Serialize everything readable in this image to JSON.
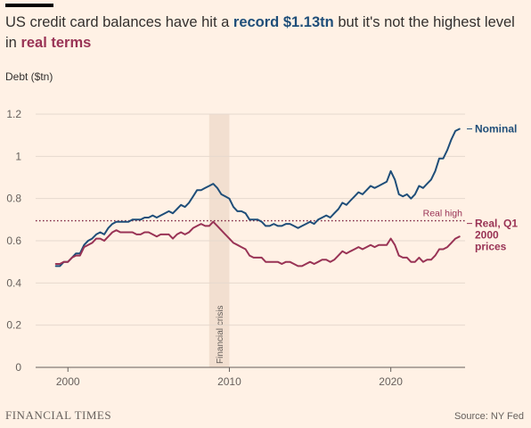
{
  "header": {
    "title_part1": "US credit card balances have hit a",
    "title_record": "record $1.13tn",
    "title_part2": "but it's not the highest level in",
    "title_real": "real terms"
  },
  "footer": {
    "brand": "FINANCIAL TIMES",
    "source": "Source: NY Fed"
  },
  "colors": {
    "nominal": "#1f4e79",
    "real": "#993355",
    "real_high": "#7a1f3d",
    "crisis_band": "#f2dfd0",
    "grid": "#e6d9ce",
    "axis_text": "#66605c"
  },
  "chart_data": {
    "type": "line",
    "ylabel": "Debt ($tn)",
    "ylim": [
      0,
      1.2
    ],
    "xlim": [
      1998,
      2024.6
    ],
    "yticks": [
      0,
      0.2,
      0.4,
      0.6,
      0.8,
      1,
      1.2
    ],
    "ytick_labels": [
      "0",
      "0.2",
      "0.4",
      "0.6",
      "0.8",
      "1",
      "1.2"
    ],
    "xticks": [
      2000,
      2010,
      2020
    ],
    "xtick_labels": [
      "2000",
      "2010",
      "2020"
    ],
    "grid": true,
    "annotations": {
      "crisis_label": "Financial crisis",
      "crisis_range": [
        2008.75,
        2010.0
      ],
      "real_high_label": "Real high",
      "real_high_value": 0.695
    },
    "series": [
      {
        "name": "Nominal",
        "x": [
          1999.25,
          1999.5,
          1999.75,
          2000.0,
          2000.25,
          2000.5,
          2000.75,
          2001.0,
          2001.25,
          2001.5,
          2001.75,
          2002.0,
          2002.25,
          2002.5,
          2002.75,
          2003.0,
          2003.25,
          2003.5,
          2003.75,
          2004.0,
          2004.25,
          2004.5,
          2004.75,
          2005.0,
          2005.25,
          2005.5,
          2005.75,
          2006.0,
          2006.25,
          2006.5,
          2006.75,
          2007.0,
          2007.25,
          2007.5,
          2007.75,
          2008.0,
          2008.25,
          2008.5,
          2008.75,
          2009.0,
          2009.25,
          2009.5,
          2009.75,
          2010.0,
          2010.25,
          2010.5,
          2010.75,
          2011.0,
          2011.25,
          2011.5,
          2011.75,
          2012.0,
          2012.25,
          2012.5,
          2012.75,
          2013.0,
          2013.25,
          2013.5,
          2013.75,
          2014.0,
          2014.25,
          2014.5,
          2014.75,
          2015.0,
          2015.25,
          2015.5,
          2015.75,
          2016.0,
          2016.25,
          2016.5,
          2016.75,
          2017.0,
          2017.25,
          2017.5,
          2017.75,
          2018.0,
          2018.25,
          2018.5,
          2018.75,
          2019.0,
          2019.25,
          2019.5,
          2019.75,
          2020.0,
          2020.25,
          2020.5,
          2020.75,
          2021.0,
          2021.25,
          2021.5,
          2021.75,
          2022.0,
          2022.25,
          2022.5,
          2022.75,
          2023.0,
          2023.25,
          2023.5,
          2023.75,
          2024.0,
          2024.25
        ],
        "values": [
          0.48,
          0.48,
          0.5,
          0.5,
          0.52,
          0.54,
          0.54,
          0.58,
          0.6,
          0.61,
          0.63,
          0.64,
          0.63,
          0.66,
          0.68,
          0.69,
          0.69,
          0.69,
          0.69,
          0.7,
          0.7,
          0.7,
          0.71,
          0.71,
          0.72,
          0.71,
          0.72,
          0.73,
          0.74,
          0.73,
          0.75,
          0.77,
          0.76,
          0.78,
          0.81,
          0.84,
          0.84,
          0.85,
          0.86,
          0.87,
          0.85,
          0.82,
          0.81,
          0.8,
          0.76,
          0.74,
          0.74,
          0.73,
          0.7,
          0.7,
          0.7,
          0.69,
          0.67,
          0.67,
          0.68,
          0.67,
          0.67,
          0.68,
          0.68,
          0.67,
          0.66,
          0.67,
          0.68,
          0.69,
          0.68,
          0.7,
          0.71,
          0.72,
          0.71,
          0.73,
          0.75,
          0.78,
          0.77,
          0.79,
          0.81,
          0.83,
          0.82,
          0.84,
          0.86,
          0.85,
          0.86,
          0.87,
          0.88,
          0.93,
          0.89,
          0.82,
          0.81,
          0.82,
          0.8,
          0.82,
          0.86,
          0.85,
          0.87,
          0.89,
          0.93,
          0.99,
          0.99,
          1.03,
          1.08,
          1.12,
          1.13
        ]
      },
      {
        "name": "Real, Q1 2000 prices",
        "x": [
          1999.25,
          1999.5,
          1999.75,
          2000.0,
          2000.25,
          2000.5,
          2000.75,
          2001.0,
          2001.25,
          2001.5,
          2001.75,
          2002.0,
          2002.25,
          2002.5,
          2002.75,
          2003.0,
          2003.25,
          2003.5,
          2003.75,
          2004.0,
          2004.25,
          2004.5,
          2004.75,
          2005.0,
          2005.25,
          2005.5,
          2005.75,
          2006.0,
          2006.25,
          2006.5,
          2006.75,
          2007.0,
          2007.25,
          2007.5,
          2007.75,
          2008.0,
          2008.25,
          2008.5,
          2008.75,
          2009.0,
          2009.25,
          2009.5,
          2009.75,
          2010.0,
          2010.25,
          2010.5,
          2010.75,
          2011.0,
          2011.25,
          2011.5,
          2011.75,
          2012.0,
          2012.25,
          2012.5,
          2012.75,
          2013.0,
          2013.25,
          2013.5,
          2013.75,
          2014.0,
          2014.25,
          2014.5,
          2014.75,
          2015.0,
          2015.25,
          2015.5,
          2015.75,
          2016.0,
          2016.25,
          2016.5,
          2016.75,
          2017.0,
          2017.25,
          2017.5,
          2017.75,
          2018.0,
          2018.25,
          2018.5,
          2018.75,
          2019.0,
          2019.25,
          2019.5,
          2019.75,
          2020.0,
          2020.25,
          2020.5,
          2020.75,
          2021.0,
          2021.25,
          2021.5,
          2021.75,
          2022.0,
          2022.25,
          2022.5,
          2022.75,
          2023.0,
          2023.25,
          2023.5,
          2023.75,
          2024.0,
          2024.25
        ],
        "values": [
          0.49,
          0.49,
          0.5,
          0.5,
          0.52,
          0.53,
          0.53,
          0.57,
          0.58,
          0.59,
          0.61,
          0.61,
          0.6,
          0.62,
          0.64,
          0.65,
          0.64,
          0.64,
          0.64,
          0.64,
          0.63,
          0.63,
          0.64,
          0.64,
          0.63,
          0.62,
          0.63,
          0.63,
          0.63,
          0.61,
          0.63,
          0.64,
          0.63,
          0.64,
          0.66,
          0.67,
          0.68,
          0.67,
          0.67,
          0.69,
          0.67,
          0.65,
          0.63,
          0.61,
          0.59,
          0.58,
          0.57,
          0.56,
          0.53,
          0.52,
          0.52,
          0.52,
          0.5,
          0.5,
          0.5,
          0.5,
          0.49,
          0.5,
          0.5,
          0.49,
          0.48,
          0.48,
          0.49,
          0.5,
          0.49,
          0.5,
          0.51,
          0.51,
          0.5,
          0.51,
          0.53,
          0.55,
          0.54,
          0.55,
          0.56,
          0.57,
          0.56,
          0.57,
          0.58,
          0.57,
          0.58,
          0.58,
          0.58,
          0.61,
          0.58,
          0.53,
          0.52,
          0.52,
          0.5,
          0.5,
          0.52,
          0.5,
          0.51,
          0.51,
          0.53,
          0.56,
          0.56,
          0.57,
          0.59,
          0.61,
          0.62
        ]
      }
    ],
    "series_labels": {
      "nominal": "Nominal",
      "real_line1": "Real, Q1",
      "real_line2": "2000",
      "real_line3": "prices"
    }
  }
}
